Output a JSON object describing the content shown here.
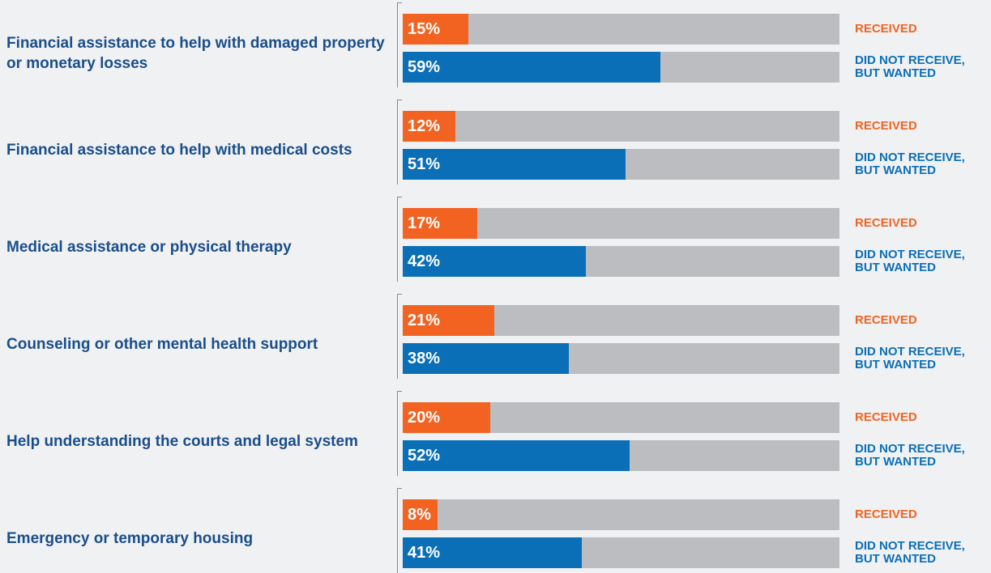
{
  "chart_data": {
    "type": "bar",
    "orientation": "horizontal",
    "categories": [
      "Financial assistance to help with damaged property or monetary losses",
      "Financial assistance to help with medical costs",
      "Medical assistance or physical therapy",
      "Counseling or other mental health support",
      "Help understanding the courts and legal system",
      "Emergency or temporary housing"
    ],
    "series": [
      {
        "name": "RECEIVED",
        "color": "#f26322",
        "values": [
          15,
          12,
          17,
          21,
          20,
          8
        ],
        "value_labels": [
          "15%",
          "12%",
          "17%",
          "21%",
          "20%",
          "8%"
        ]
      },
      {
        "name": "DID NOT RECEIVE, BUT WANTED",
        "color": "#0b6fb8",
        "values": [
          59,
          51,
          42,
          38,
          52,
          41
        ],
        "value_labels": [
          "59%",
          "51%",
          "42%",
          "38%",
          "52%",
          "41%"
        ]
      }
    ],
    "xlim": [
      0,
      100
    ],
    "track_color": "#bcbdc0"
  }
}
